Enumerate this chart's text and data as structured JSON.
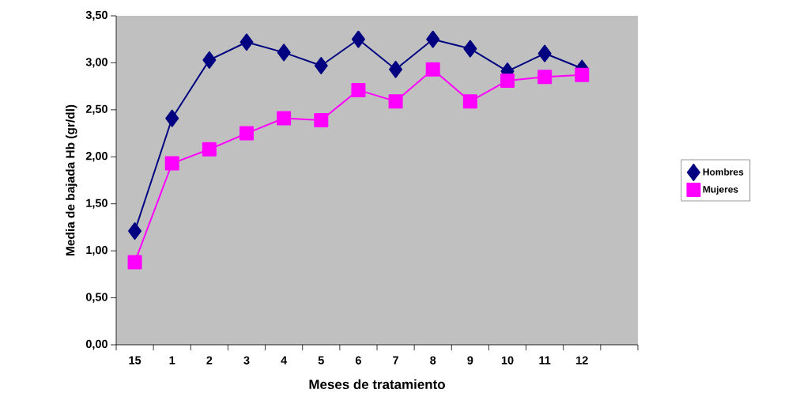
{
  "chart_data": {
    "type": "line",
    "xlabel": "Meses de tratamiento",
    "ylabel": "Media de bajada Hb (gr/dl)",
    "categories": [
      "15",
      "1",
      "2",
      "3",
      "4",
      "5",
      "6",
      "7",
      "8",
      "9",
      "10",
      "11",
      "12",
      null
    ],
    "series": [
      {
        "name": "Hombres",
        "color": "#000080",
        "marker": "diamond",
        "values": [
          1.21,
          2.41,
          3.03,
          3.22,
          3.11,
          2.97,
          3.25,
          2.93,
          3.25,
          3.15,
          2.91,
          3.1,
          2.94,
          null
        ]
      },
      {
        "name": "Mujeres",
        "color": "#ff00ff",
        "marker": "square",
        "values": [
          0.88,
          1.93,
          2.08,
          2.25,
          2.41,
          2.39,
          2.71,
          2.59,
          2.93,
          2.59,
          2.81,
          2.85,
          2.87,
          null
        ]
      }
    ],
    "ylim": [
      0,
      3.5
    ],
    "yticks": [
      {
        "value": 0,
        "label": "0,00"
      },
      {
        "value": 0.5,
        "label": "0,50"
      },
      {
        "value": 1,
        "label": "1,00"
      },
      {
        "value": 1.5,
        "label": "1,50"
      },
      {
        "value": 2,
        "label": "2,00"
      },
      {
        "value": 2.5,
        "label": "2,50"
      },
      {
        "value": 3,
        "label": "3,00"
      },
      {
        "value": 3.5,
        "label": "3,50"
      }
    ],
    "grid": false,
    "legend": "right",
    "line_style": "solid"
  }
}
